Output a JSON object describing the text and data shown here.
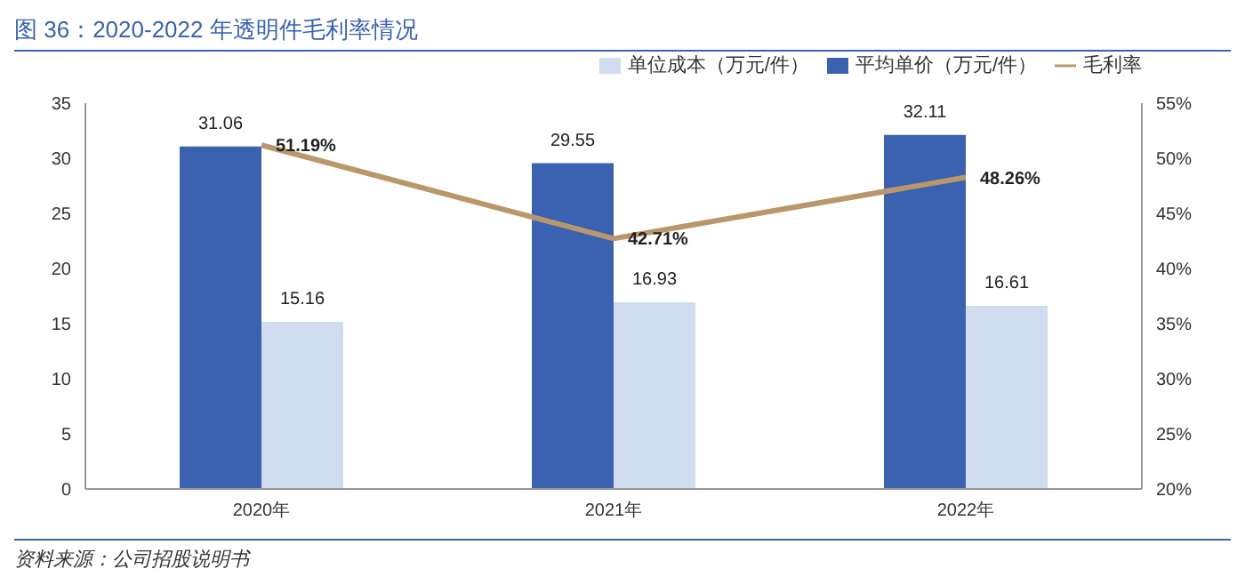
{
  "chart_data": {
    "type": "bar",
    "title": "图 36：2020-2022 年透明件毛利率情况",
    "categories": [
      "2020年",
      "2021年",
      "2022年"
    ],
    "series": [
      {
        "name": "平均单价（万元/件）",
        "color": "#3a62b0",
        "values": [
          31.06,
          29.55,
          32.11
        ],
        "value_labels": [
          "31.06",
          "29.55",
          "32.11"
        ]
      },
      {
        "name": "单位成本（万元/件）",
        "color": "#d0dcef",
        "values": [
          15.16,
          16.93,
          16.61
        ],
        "value_labels": [
          "15.16",
          "16.93",
          "16.61"
        ]
      },
      {
        "name": "毛利率",
        "type": "line",
        "axis": "y2",
        "color": "#b8976a",
        "values": [
          51.19,
          42.71,
          48.26
        ],
        "value_labels": [
          "51.19%",
          "42.71%",
          "48.26%"
        ]
      }
    ],
    "ylim": [
      0,
      35
    ],
    "yticks": [
      0,
      5,
      10,
      15,
      20,
      25,
      30,
      35
    ],
    "y2lim": [
      20,
      55
    ],
    "y2ticks": [
      {
        "value": 20,
        "label": "20%"
      },
      {
        "value": 25,
        "label": "25%"
      },
      {
        "value": 30,
        "label": "30%"
      },
      {
        "value": 35,
        "label": "35%"
      },
      {
        "value": 40,
        "label": "40%"
      },
      {
        "value": 45,
        "label": "45%"
      },
      {
        "value": 50,
        "label": "50%"
      },
      {
        "value": 55,
        "label": "55%"
      }
    ],
    "grid": false,
    "legend": "top right",
    "marker": "none",
    "line_style": "solid",
    "annotations": [
      "资料来源：公司招股说明书"
    ]
  }
}
